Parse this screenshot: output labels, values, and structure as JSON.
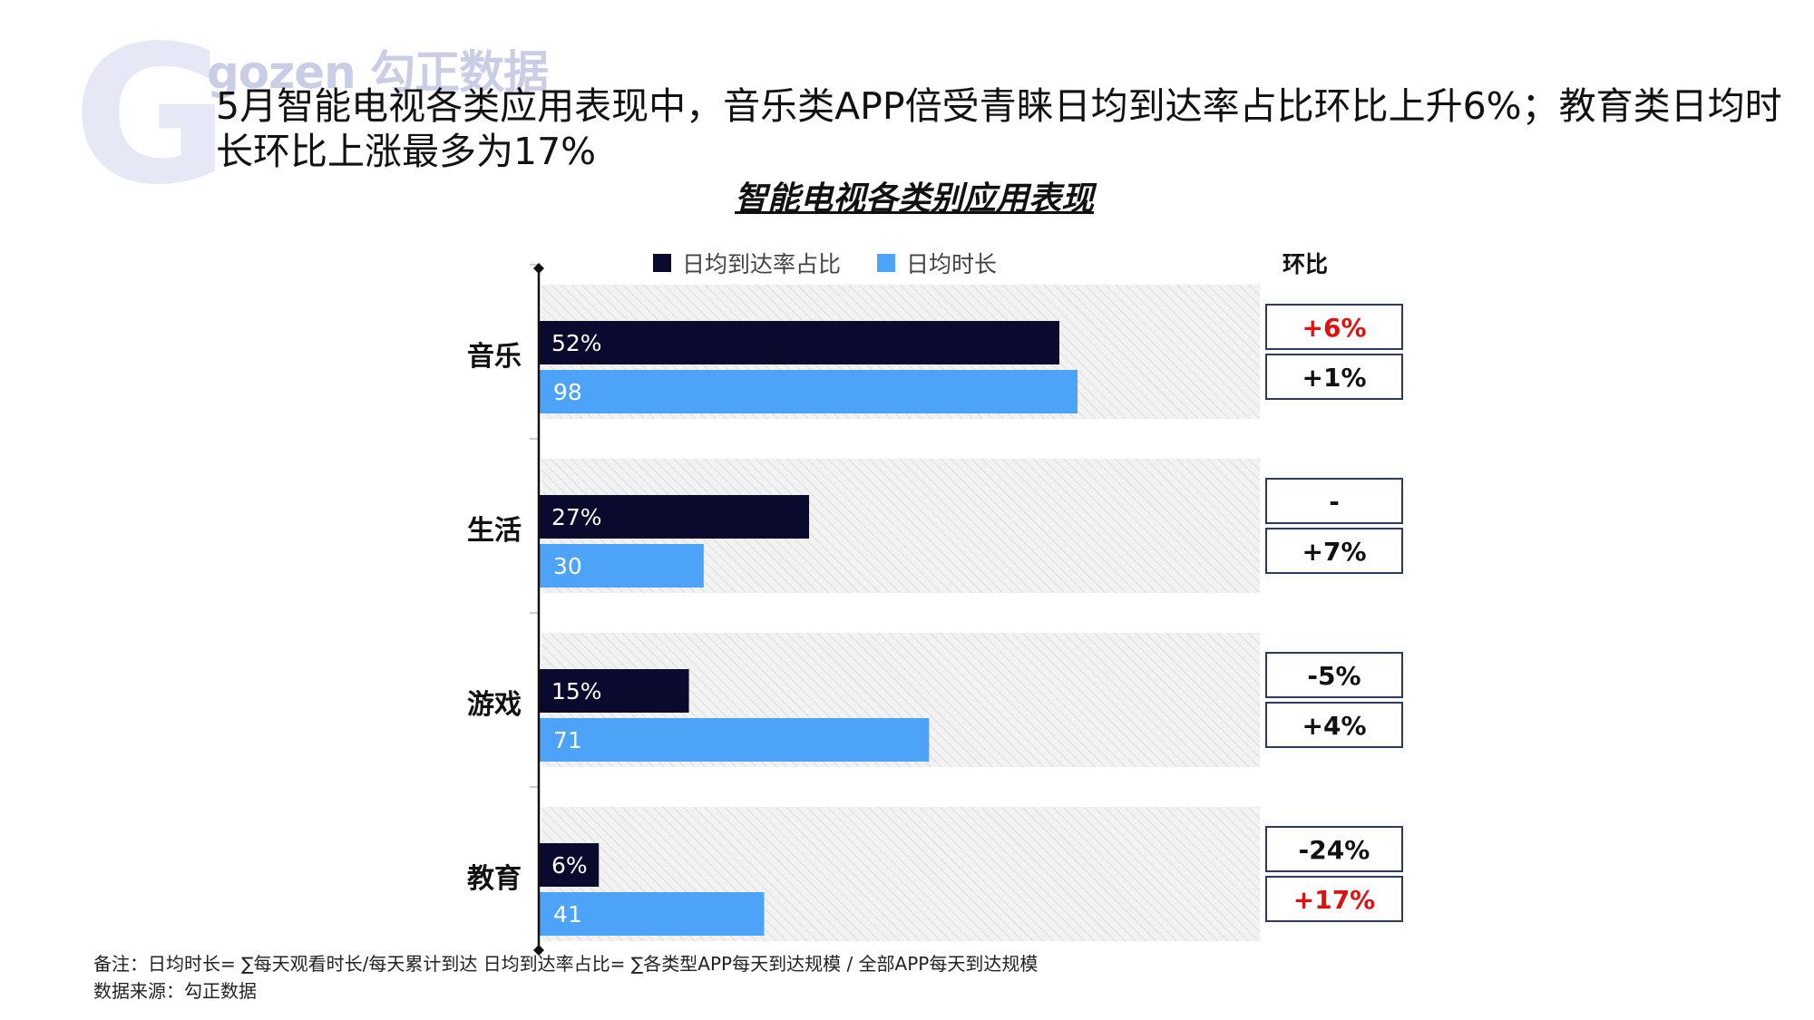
{
  "brand": {
    "logo_text": "gozen 勾正数据",
    "watermark_letter": "G"
  },
  "headline": "5月智能电视各类应用表现中，音乐类APP倍受青睐日均到达率占比环比上升6%；教育类日均时长环比上涨最多为17%",
  "chart_data": {
    "type": "bar",
    "orientation": "horizontal",
    "title": "智能电视各类别应用表现",
    "categories": [
      "音乐",
      "生活",
      "游戏",
      "教育"
    ],
    "series": [
      {
        "name": "日均到达率占比",
        "color": "#0a0a2e",
        "values": [
          52,
          27,
          15,
          6
        ],
        "labels": [
          "52%",
          "27%",
          "15%",
          "6%"
        ]
      },
      {
        "name": "日均时长",
        "color": "#4da3f7",
        "values": [
          98,
          30,
          71,
          41
        ],
        "labels": [
          "98",
          "30",
          "71",
          "41"
        ]
      }
    ],
    "comparison_header": "环比",
    "comparison": [
      {
        "reach": "+6%",
        "reach_color": "#e01010",
        "duration": "+1%",
        "duration_color": "#111111"
      },
      {
        "reach": "-",
        "reach_color": "#111111",
        "duration": "+7%",
        "duration_color": "#111111"
      },
      {
        "reach": "-5%",
        "reach_color": "#111111",
        "duration": "+4%",
        "duration_color": "#111111"
      },
      {
        "reach": "-24%",
        "reach_color": "#111111",
        "duration": "+17%",
        "duration_color": "#e01010"
      }
    ]
  },
  "footnote": {
    "note": "备注：日均时长= ∑每天观看时长/每天累计到达   日均到达率占比= ∑各类型APP每天到达规模  /  全部APP每天到达规模",
    "source": "数据来源：勾正数据"
  }
}
